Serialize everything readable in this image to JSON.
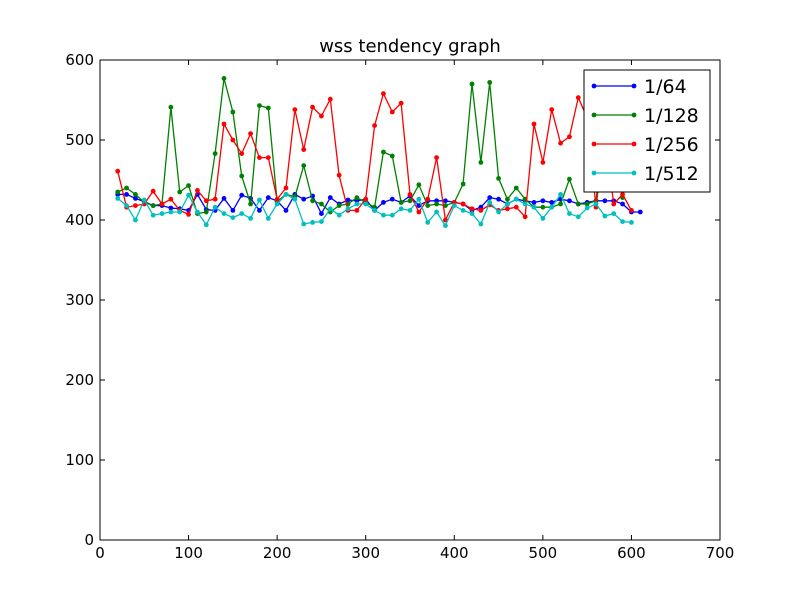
{
  "chart_data": {
    "type": "line",
    "title": "wss tendency graph",
    "xlabel": "",
    "ylabel": "",
    "xlim": [
      0,
      700
    ],
    "ylim": [
      0,
      600
    ],
    "x_ticks": [
      0,
      100,
      200,
      300,
      400,
      500,
      600,
      700
    ],
    "y_ticks": [
      0,
      100,
      200,
      300,
      400,
      500,
      600
    ],
    "x_tick_labels": [
      "0",
      "100",
      "200",
      "300",
      "400",
      "500",
      "600",
      "700"
    ],
    "y_tick_labels": [
      "0",
      "100",
      "200",
      "300",
      "400",
      "500",
      "600"
    ],
    "grid": false,
    "legend_position": "top-right",
    "series": [
      {
        "name": "1/64",
        "color": "#0000ff",
        "x": [
          20,
          30,
          40,
          50,
          60,
          70,
          80,
          90,
          100,
          110,
          120,
          130,
          140,
          150,
          160,
          170,
          180,
          190,
          200,
          210,
          220,
          230,
          240,
          250,
          260,
          270,
          280,
          290,
          300,
          310,
          320,
          330,
          340,
          350,
          360,
          370,
          380,
          390,
          400,
          410,
          420,
          430,
          440,
          450,
          460,
          470,
          480,
          490,
          500,
          510,
          520,
          530,
          540,
          550,
          560,
          570,
          580,
          590,
          600,
          610
        ],
        "values": [
          432,
          432,
          427,
          423,
          418,
          418,
          415,
          414,
          412,
          432,
          413,
          412,
          427,
          412,
          431,
          427,
          412,
          428,
          424,
          412,
          432,
          426,
          430,
          408,
          428,
          420,
          425,
          424,
          426,
          412,
          422,
          426,
          422,
          430,
          418,
          424,
          424,
          424,
          422,
          420,
          412,
          416,
          428,
          426,
          420,
          426,
          424,
          422,
          424,
          422,
          426,
          424,
          420,
          422,
          424,
          424,
          424,
          420,
          410,
          410
        ]
      },
      {
        "name": "1/128",
        "color": "#008000",
        "x": [
          20,
          30,
          40,
          50,
          60,
          70,
          80,
          90,
          100,
          110,
          120,
          130,
          140,
          150,
          160,
          170,
          180,
          190,
          200,
          210,
          220,
          230,
          240,
          250,
          260,
          270,
          280,
          290,
          300,
          310,
          320,
          330,
          340,
          350,
          360,
          370,
          380,
          390,
          400,
          410,
          420,
          430,
          440,
          450,
          460,
          470,
          480,
          490,
          500,
          510,
          520,
          530,
          540,
          550,
          560,
          570,
          580,
          590
        ],
        "values": [
          435,
          440,
          432,
          422,
          418,
          420,
          541,
          435,
          443,
          408,
          410,
          483,
          577,
          535,
          455,
          420,
          543,
          540,
          423,
          432,
          429,
          468,
          424,
          420,
          410,
          418,
          420,
          428,
          422,
          416,
          485,
          480,
          422,
          424,
          444,
          418,
          420,
          418,
          422,
          445,
          570,
          472,
          572,
          452,
          426,
          440,
          426,
          416,
          416,
          416,
          420,
          451,
          420,
          420,
          424,
          520,
          555,
          428
        ]
      },
      {
        "name": "1/256",
        "color": "#ff0000",
        "x": [
          20,
          30,
          40,
          50,
          60,
          70,
          80,
          90,
          100,
          110,
          120,
          130,
          140,
          150,
          160,
          170,
          180,
          190,
          200,
          210,
          220,
          230,
          240,
          250,
          260,
          270,
          280,
          290,
          300,
          310,
          320,
          330,
          340,
          350,
          360,
          370,
          380,
          390,
          400,
          410,
          420,
          430,
          440,
          450,
          460,
          470,
          480,
          490,
          500,
          510,
          520,
          530,
          540,
          550,
          560,
          570,
          580,
          590,
          600
        ],
        "values": [
          461,
          416,
          418,
          420,
          436,
          420,
          426,
          412,
          407,
          437,
          424,
          426,
          520,
          500,
          483,
          508,
          478,
          478,
          426,
          440,
          538,
          488,
          541,
          530,
          551,
          456,
          412,
          412,
          426,
          518,
          558,
          535,
          546,
          432,
          410,
          426,
          478,
          400,
          422,
          420,
          414,
          412,
          419,
          412,
          414,
          416,
          404,
          520,
          472,
          538,
          496,
          504,
          553,
          528,
          416,
          508,
          420,
          432,
          412
        ]
      },
      {
        "name": "1/512",
        "color": "#00bfbf",
        "x": [
          20,
          30,
          40,
          50,
          60,
          70,
          80,
          90,
          100,
          110,
          120,
          130,
          140,
          150,
          160,
          170,
          180,
          190,
          200,
          210,
          220,
          230,
          240,
          250,
          260,
          270,
          280,
          290,
          300,
          310,
          320,
          330,
          340,
          350,
          360,
          370,
          380,
          390,
          400,
          410,
          420,
          430,
          440,
          450,
          460,
          470,
          480,
          490,
          500,
          510,
          520,
          530,
          540,
          550,
          560,
          570,
          580,
          590,
          600
        ],
        "values": [
          427,
          418,
          400,
          425,
          406,
          408,
          410,
          410,
          431,
          410,
          394,
          416,
          408,
          403,
          408,
          402,
          425,
          402,
          420,
          432,
          426,
          395,
          397,
          398,
          414,
          406,
          414,
          420,
          420,
          412,
          406,
          406,
          414,
          412,
          426,
          397,
          410,
          393,
          418,
          412,
          408,
          395,
          422,
          410,
          420,
          426,
          420,
          416,
          402,
          416,
          432,
          408,
          404,
          415,
          420,
          405,
          408,
          398,
          397
        ]
      }
    ]
  }
}
